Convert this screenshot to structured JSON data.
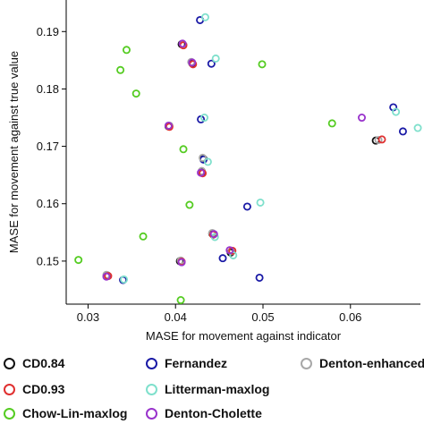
{
  "chart_data": {
    "type": "scatter",
    "xlabel": "MASE for movement against indicator",
    "ylabel": "MASE for movement against true value",
    "xlim": [
      0.0275,
      0.068
    ],
    "ylim": [
      0.1425,
      0.1955
    ],
    "x_ticks": [
      0.03,
      0.04,
      0.05,
      0.06
    ],
    "x_tick_labels": [
      "0.03",
      "0.04",
      "0.05",
      "0.06"
    ],
    "y_ticks": [
      0.15,
      0.16,
      0.17,
      0.18,
      0.19
    ],
    "y_tick_labels": [
      "0.15",
      "0.16",
      "0.17",
      "0.18",
      "0.19"
    ],
    "grid": false,
    "legend_position": "bottom",
    "series": [
      {
        "name": "CD0.84",
        "color": "#111111",
        "points": [
          [
            0.0407,
            0.1878
          ],
          [
            0.0419,
            0.1845
          ],
          [
            0.0392,
            0.1735
          ],
          [
            0.0432,
            0.1678
          ],
          [
            0.0629,
            0.171
          ],
          [
            0.043,
            0.1655
          ],
          [
            0.0442,
            0.1548
          ],
          [
            0.0405,
            0.15
          ],
          [
            0.0463,
            0.1515
          ],
          [
            0.0322,
            0.1475
          ]
        ]
      },
      {
        "name": "Fernandez",
        "color": "#1a1aa6",
        "points": [
          [
            0.0428,
            0.192
          ],
          [
            0.0441,
            0.1844
          ],
          [
            0.0429,
            0.1747
          ],
          [
            0.0649,
            0.1768
          ],
          [
            0.066,
            0.1726
          ],
          [
            0.0482,
            0.1595
          ],
          [
            0.0454,
            0.1505
          ],
          [
            0.0496,
            0.1471
          ],
          [
            0.034,
            0.1467
          ],
          [
            0.0432,
            0.1677
          ]
        ]
      },
      {
        "name": "Denton-enhanced",
        "color": "#a8a8a8",
        "points": [
          [
            0.0409,
            0.1877
          ],
          [
            0.0418,
            0.1847
          ],
          [
            0.0431,
            0.168
          ],
          [
            0.0442,
            0.1549
          ],
          [
            0.0464,
            0.1517
          ],
          [
            0.0321,
            0.1476
          ],
          [
            0.0632,
            0.1711
          ],
          [
            0.0406,
            0.1501
          ],
          [
            0.0393,
            0.1736
          ],
          [
            0.043,
            0.1657
          ]
        ]
      },
      {
        "name": "CD0.93",
        "color": "#e03030",
        "points": [
          [
            0.0409,
            0.1876
          ],
          [
            0.042,
            0.1843
          ],
          [
            0.0636,
            0.1712
          ],
          [
            0.0443,
            0.1546
          ],
          [
            0.0407,
            0.1499
          ],
          [
            0.0465,
            0.1518
          ],
          [
            0.0431,
            0.1653
          ],
          [
            0.0323,
            0.1474
          ],
          [
            0.0393,
            0.1734
          ]
        ]
      },
      {
        "name": "Litterman-maxlog",
        "color": "#7fe0cc",
        "points": [
          [
            0.0434,
            0.1925
          ],
          [
            0.0446,
            0.1853
          ],
          [
            0.0433,
            0.175
          ],
          [
            0.0652,
            0.176
          ],
          [
            0.0677,
            0.1732
          ],
          [
            0.0497,
            0.1602
          ],
          [
            0.0466,
            0.151
          ],
          [
            0.0437,
            0.1673
          ],
          [
            0.0341,
            0.1468
          ],
          [
            0.0445,
            0.1542
          ]
        ]
      },
      {
        "name": "Chow-Lin-maxlog",
        "color": "#55cc22",
        "points": [
          [
            0.0344,
            0.1868
          ],
          [
            0.0337,
            0.1833
          ],
          [
            0.0355,
            0.1792
          ],
          [
            0.0499,
            0.1843
          ],
          [
            0.0409,
            0.1695
          ],
          [
            0.0579,
            0.174
          ],
          [
            0.0416,
            0.1598
          ],
          [
            0.0363,
            0.1543
          ],
          [
            0.0289,
            0.1502
          ],
          [
            0.0406,
            0.1432
          ]
        ]
      },
      {
        "name": "Denton-Cholette",
        "color": "#9933cc",
        "points": [
          [
            0.0408,
            0.1879
          ],
          [
            0.0419,
            0.1846
          ],
          [
            0.0613,
            0.175
          ],
          [
            0.0392,
            0.1736
          ],
          [
            0.0429,
            0.1654
          ],
          [
            0.0444,
            0.1547
          ],
          [
            0.0407,
            0.1498
          ],
          [
            0.0462,
            0.1519
          ],
          [
            0.0321,
            0.1473
          ]
        ]
      }
    ]
  }
}
